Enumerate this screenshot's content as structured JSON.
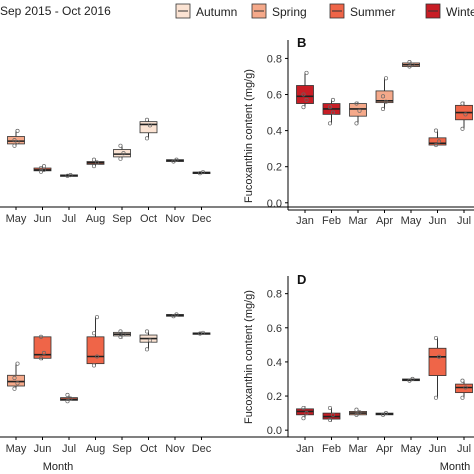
{
  "legend": {
    "title": "Sep 2015 - Oct 2016",
    "items": [
      {
        "label": "Autumn",
        "color": "#fbe3d3"
      },
      {
        "label": "Spring",
        "color": "#f5a98a"
      },
      {
        "label": "Summer",
        "color": "#ef6548"
      },
      {
        "label": "Winter",
        "color": "#c81d25"
      }
    ]
  },
  "chart_data": [
    {
      "id": "A",
      "type": "boxplot",
      "letter": "",
      "ylabel": "",
      "xlabel": "",
      "ylim": [
        0,
        0.9
      ],
      "yticks": [],
      "categories": [
        "May",
        "Jun",
        "Jul",
        "Aug",
        "Sep",
        "Oct",
        "Nov",
        "Dec"
      ],
      "boxes": [
        {
          "cat": "May",
          "season": "Spring",
          "min": 0.33,
          "q1": 0.34,
          "med": 0.355,
          "q3": 0.38,
          "max": 0.41,
          "points": [
            0.33,
            0.35,
            0.36,
            0.41
          ]
        },
        {
          "cat": "Jun",
          "season": "Summer",
          "min": 0.19,
          "q1": 0.195,
          "med": 0.2,
          "q3": 0.21,
          "max": 0.22,
          "points": [
            0.19,
            0.2,
            0.21,
            0.22
          ]
        },
        {
          "cat": "Jul",
          "season": "Summer",
          "min": 0.165,
          "q1": 0.168,
          "med": 0.17,
          "q3": 0.173,
          "max": 0.175,
          "points": [
            0.168,
            0.172
          ]
        },
        {
          "cat": "Aug",
          "season": "Summer",
          "min": 0.22,
          "q1": 0.23,
          "med": 0.238,
          "q3": 0.245,
          "max": 0.255,
          "points": [
            0.22,
            0.24,
            0.255
          ]
        },
        {
          "cat": "Sep",
          "season": "Autumn",
          "min": 0.26,
          "q1": 0.27,
          "med": 0.285,
          "q3": 0.31,
          "max": 0.33,
          "points": [
            0.26,
            0.29,
            0.33
          ]
        },
        {
          "cat": "Oct",
          "season": "Autumn",
          "min": 0.37,
          "q1": 0.4,
          "med": 0.445,
          "q3": 0.46,
          "max": 0.47,
          "points": [
            0.37,
            0.44,
            0.47
          ]
        },
        {
          "cat": "Nov",
          "season": "Autumn",
          "min": 0.24,
          "q1": 0.245,
          "med": 0.25,
          "q3": 0.255,
          "max": 0.26,
          "points": [
            0.245,
            0.255
          ]
        },
        {
          "cat": "Dec",
          "season": "Winter",
          "min": 0.18,
          "q1": 0.182,
          "med": 0.185,
          "q3": 0.188,
          "max": 0.19,
          "points": [
            0.182,
            0.188
          ]
        }
      ]
    },
    {
      "id": "B",
      "type": "boxplot",
      "letter": "B",
      "ylabel": "Fucoxanthin content (mg/g)",
      "xlabel": "",
      "ylim": [
        -0.04,
        0.88
      ],
      "yticks": [
        "0.0",
        "0.2",
        "0.4",
        "0.6",
        "0.8"
      ],
      "categories": [
        "Jan",
        "Feb",
        "Mar",
        "Apr",
        "May",
        "Jun",
        "Jul"
      ],
      "boxes": [
        {
          "cat": "Jan",
          "season": "Winter",
          "min": 0.53,
          "q1": 0.55,
          "med": 0.59,
          "q3": 0.65,
          "max": 0.72,
          "points": [
            0.53,
            0.57,
            0.6,
            0.72
          ]
        },
        {
          "cat": "Feb",
          "season": "Winter",
          "min": 0.44,
          "q1": 0.49,
          "med": 0.52,
          "q3": 0.55,
          "max": 0.57,
          "points": [
            0.44,
            0.5,
            0.53,
            0.57
          ]
        },
        {
          "cat": "Mar",
          "season": "Spring",
          "min": 0.44,
          "q1": 0.48,
          "med": 0.52,
          "q3": 0.55,
          "max": 0.56,
          "points": [
            0.44,
            0.51,
            0.55
          ]
        },
        {
          "cat": "Apr",
          "season": "Spring",
          "min": 0.52,
          "q1": 0.555,
          "med": 0.565,
          "q3": 0.62,
          "max": 0.69,
          "points": [
            0.52,
            0.56,
            0.59,
            0.69
          ]
        },
        {
          "cat": "May",
          "season": "Spring",
          "min": 0.75,
          "q1": 0.755,
          "med": 0.765,
          "q3": 0.775,
          "max": 0.785,
          "points": [
            0.755,
            0.765,
            0.78
          ]
        },
        {
          "cat": "Jun",
          "season": "Summer",
          "min": 0.32,
          "q1": 0.32,
          "med": 0.33,
          "q3": 0.36,
          "max": 0.4,
          "points": [
            0.32,
            0.34,
            0.4
          ]
        },
        {
          "cat": "Jul",
          "season": "Summer",
          "min": 0.41,
          "q1": 0.46,
          "med": 0.5,
          "q3": 0.54,
          "max": 0.56,
          "points": [
            0.41,
            0.49,
            0.55
          ]
        }
      ]
    },
    {
      "id": "C",
      "type": "boxplot",
      "letter": "",
      "ylabel": "",
      "xlabel": "Month",
      "ylim": [
        0,
        0.9
      ],
      "yticks": [],
      "categories": [
        "May",
        "Jun",
        "Jul",
        "Aug",
        "Sep",
        "Oct",
        "Nov",
        "Dec"
      ],
      "boxes": [
        {
          "cat": "May",
          "season": "Spring",
          "min": 0.27,
          "q1": 0.285,
          "med": 0.31,
          "q3": 0.345,
          "max": 0.41,
          "points": [
            0.27,
            0.3,
            0.33,
            0.41
          ]
        },
        {
          "cat": "Jun",
          "season": "Summer",
          "min": 0.43,
          "q1": 0.44,
          "med": 0.46,
          "q3": 0.56,
          "max": 0.56,
          "points": [
            0.44,
            0.47,
            0.56
          ]
        },
        {
          "cat": "Jul",
          "season": "Summer",
          "min": 0.2,
          "q1": 0.205,
          "med": 0.21,
          "q3": 0.22,
          "max": 0.235,
          "points": [
            0.2,
            0.215,
            0.235
          ]
        },
        {
          "cat": "Aug",
          "season": "Summer",
          "min": 0.4,
          "q1": 0.41,
          "med": 0.45,
          "q3": 0.56,
          "max": 0.67,
          "points": [
            0.4,
            0.45,
            0.58,
            0.67
          ]
        },
        {
          "cat": "Sep",
          "season": "Autumn",
          "min": 0.55,
          "q1": 0.565,
          "med": 0.575,
          "q3": 0.585,
          "max": 0.59,
          "points": [
            0.56,
            0.575,
            0.59
          ]
        },
        {
          "cat": "Oct",
          "season": "Autumn",
          "min": 0.49,
          "q1": 0.53,
          "med": 0.55,
          "q3": 0.57,
          "max": 0.59,
          "points": [
            0.49,
            0.54,
            0.59
          ]
        },
        {
          "cat": "Nov",
          "season": "Autumn",
          "min": 0.67,
          "q1": 0.675,
          "med": 0.68,
          "q3": 0.685,
          "max": 0.69,
          "points": [
            0.675,
            0.685
          ]
        },
        {
          "cat": "Dec",
          "season": "Winter",
          "min": 0.575,
          "q1": 0.578,
          "med": 0.58,
          "q3": 0.582,
          "max": 0.585,
          "points": [
            0.578,
            0.582
          ]
        }
      ]
    },
    {
      "id": "D",
      "type": "boxplot",
      "letter": "D",
      "ylabel": "Fucoxanthin content (mg/g)",
      "xlabel": "Month",
      "ylim": [
        -0.04,
        0.88
      ],
      "yticks": [
        "0.0",
        "0.2",
        "0.4",
        "0.6",
        "0.8"
      ],
      "categories": [
        "Jan",
        "Feb",
        "Mar",
        "Apr",
        "May",
        "Jun",
        "Jul"
      ],
      "boxes": [
        {
          "cat": "Jan",
          "season": "Winter",
          "min": 0.07,
          "q1": 0.09,
          "med": 0.11,
          "q3": 0.125,
          "max": 0.14,
          "points": [
            0.07,
            0.1,
            0.13
          ]
        },
        {
          "cat": "Feb",
          "season": "Winter",
          "min": 0.05,
          "q1": 0.065,
          "med": 0.08,
          "q3": 0.1,
          "max": 0.13,
          "points": [
            0.06,
            0.09,
            0.13
          ]
        },
        {
          "cat": "Mar",
          "season": "Spring",
          "min": 0.085,
          "q1": 0.09,
          "med": 0.1,
          "q3": 0.11,
          "max": 0.12,
          "points": [
            0.09,
            0.105,
            0.12
          ]
        },
        {
          "cat": "Apr",
          "season": "Spring",
          "min": 0.085,
          "q1": 0.09,
          "med": 0.095,
          "q3": 0.1,
          "max": 0.105,
          "points": [
            0.09,
            0.1
          ]
        },
        {
          "cat": "May",
          "season": "Summer",
          "min": 0.285,
          "q1": 0.29,
          "med": 0.295,
          "q3": 0.3,
          "max": 0.305,
          "points": [
            0.29,
            0.3
          ]
        },
        {
          "cat": "Jun",
          "season": "Summer",
          "min": 0.19,
          "q1": 0.32,
          "med": 0.43,
          "q3": 0.48,
          "max": 0.54,
          "points": [
            0.19,
            0.43,
            0.54
          ]
        },
        {
          "cat": "Jul",
          "season": "Summer",
          "min": 0.19,
          "q1": 0.22,
          "med": 0.25,
          "q3": 0.27,
          "max": 0.29,
          "points": [
            0.19,
            0.25,
            0.29
          ]
        }
      ]
    }
  ]
}
